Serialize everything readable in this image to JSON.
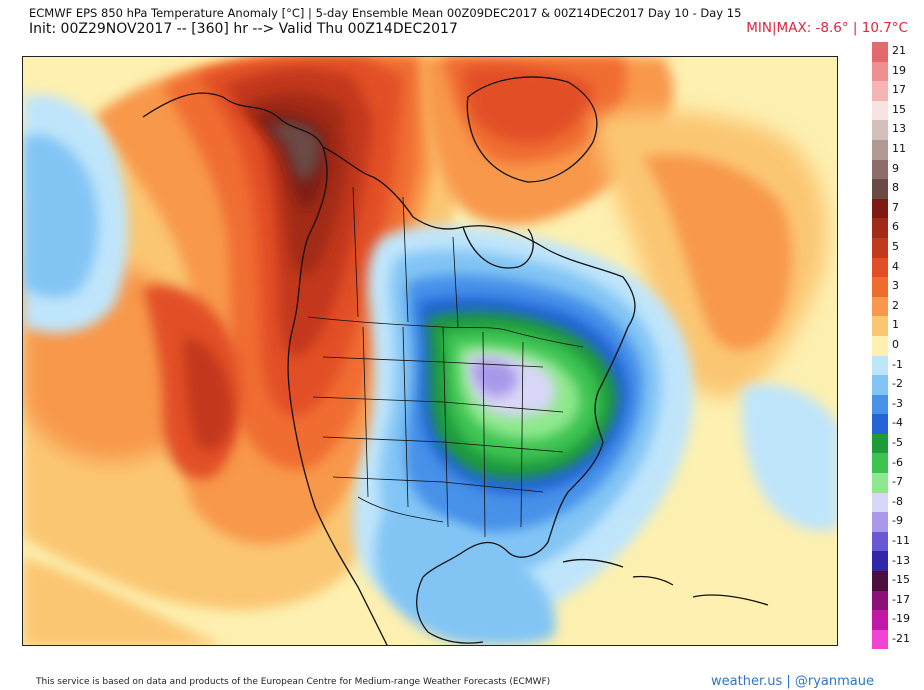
{
  "header": {
    "title_line1": "ECMWF EPS 850 hPa Temperature Anomaly [°C] | 5-day Ensemble Mean 00Z09DEC2017 & 00Z14DEC2017   Day 10 - Day 15",
    "title_line2": "Init: 00Z29NOV2017 -- [360] hr --> Valid Thu 00Z14DEC2017",
    "minmax": "MIN|MAX: -8.6° | 10.7°C"
  },
  "colors": {
    "minmax_text": "#e0263c",
    "brand_text": "#2d76c8",
    "warm_core": "#6b4a45",
    "cold_core": "#9c88e0"
  },
  "legend": {
    "levels": [
      {
        "label": "21",
        "color": "#e5686c"
      },
      {
        "label": "19",
        "color": "#ef8f91"
      },
      {
        "label": "17",
        "color": "#f5b5b5"
      },
      {
        "label": "15",
        "color": "#f7e3e1"
      },
      {
        "label": "13",
        "color": "#d3c0bc"
      },
      {
        "label": "11",
        "color": "#b09893"
      },
      {
        "label": "9",
        "color": "#8c6f6a"
      },
      {
        "label": "8",
        "color": "#6b4a45"
      },
      {
        "label": "7",
        "color": "#7d1a12"
      },
      {
        "label": "6",
        "color": "#a22a18"
      },
      {
        "label": "5",
        "color": "#c3391e"
      },
      {
        "label": "4",
        "color": "#e24f27"
      },
      {
        "label": "3",
        "color": "#f06d30"
      },
      {
        "label": "2",
        "color": "#f8984c"
      },
      {
        "label": "1",
        "color": "#fbc672"
      },
      {
        "label": "0",
        "color": "#fdf0b0"
      },
      {
        "label": "-1",
        "color": "#bfe5fb"
      },
      {
        "label": "-2",
        "color": "#82c5f5"
      },
      {
        "label": "-3",
        "color": "#4791e9"
      },
      {
        "label": "-4",
        "color": "#2463d6"
      },
      {
        "label": "-5",
        "color": "#1f9a3a"
      },
      {
        "label": "-6",
        "color": "#3cc351"
      },
      {
        "label": "-7",
        "color": "#8fe88d"
      },
      {
        "label": "-8",
        "color": "#d9d7f7"
      },
      {
        "label": "-9",
        "color": "#a997ea"
      },
      {
        "label": "-11",
        "color": "#6a57d4"
      },
      {
        "label": "-13",
        "color": "#3127a8"
      },
      {
        "label": "-15",
        "color": "#4a0f3e"
      },
      {
        "label": "-17",
        "color": "#8d0f7a"
      },
      {
        "label": "-19",
        "color": "#c218a8"
      },
      {
        "label": "-21",
        "color": "#f243d2"
      }
    ]
  },
  "footer": {
    "note": "This service is based on data and products of the European Centre for Medium-range Weather Forecasts (ECMWF)",
    "brand": "weather.us | @ryanmaue"
  }
}
